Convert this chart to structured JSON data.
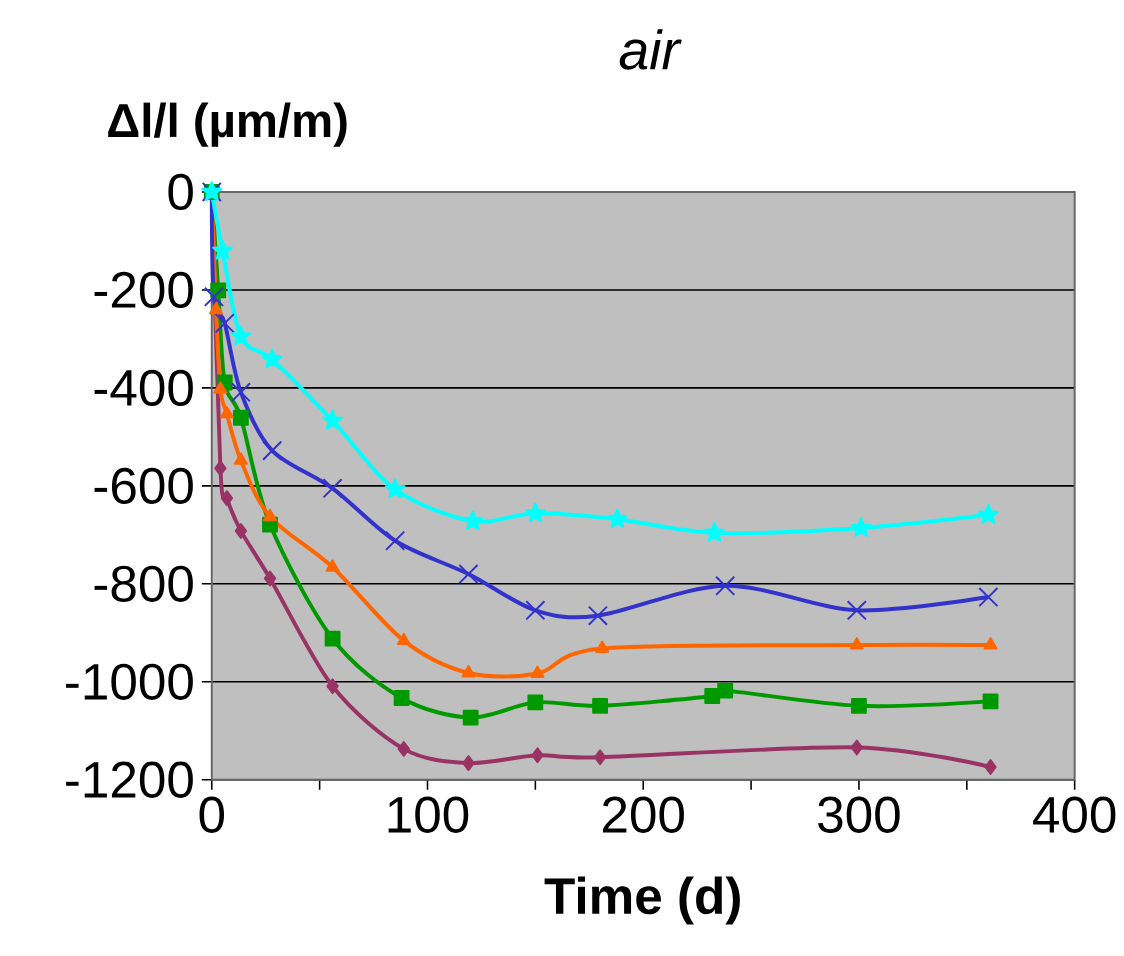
{
  "chart_data": {
    "type": "line",
    "title": "air",
    "xlabel": "Time (d)",
    "ylabel": "Δl/l (µm/m)",
    "xlim": [
      0,
      400
    ],
    "ylim": [
      -1200,
      0
    ],
    "xticks": [
      0,
      {
        "value": 50,
        "label": null
      },
      100,
      {
        "value": 150,
        "label": null
      },
      200,
      {
        "value": 250,
        "label": null
      },
      300,
      {
        "value": 350,
        "label": null
      },
      400
    ],
    "yticks": [
      0,
      -200,
      -400,
      -600,
      -800,
      -1000,
      -1200
    ],
    "grid": "y",
    "series": [
      {
        "color": "#00ffff",
        "marker": "star",
        "x": [
          0,
          5,
          13.5,
          28,
          56,
          85,
          121,
          150,
          188,
          233,
          301,
          360
        ],
        "values": [
          0,
          -120,
          -295,
          -342,
          -467,
          -607,
          -672,
          -656,
          -668,
          -696,
          -686,
          -659
        ]
      },
      {
        "color": "#3333cc",
        "marker": "cross",
        "x": [
          0,
          1,
          6,
          13.5,
          28,
          56,
          85,
          119,
          150,
          179,
          238,
          299,
          360
        ],
        "values": [
          0,
          -214,
          -268,
          -409,
          -528,
          -605,
          -712,
          -780,
          -854,
          -865,
          -804,
          -854,
          -827
        ]
      },
      {
        "color": "#ff6600",
        "marker": "triangle",
        "x": [
          0,
          2,
          4,
          7,
          13.5,
          27,
          56,
          89,
          119,
          151,
          181,
          299,
          361
        ],
        "values": [
          0,
          -241,
          -403,
          -453,
          -548,
          -663,
          -766,
          -916,
          -982,
          -983,
          -932,
          -925,
          -925
        ]
      },
      {
        "color": "#009900",
        "marker": "square",
        "x": [
          0,
          3,
          6,
          13.5,
          27,
          56,
          88,
          120,
          150,
          180,
          232,
          238,
          300,
          361
        ],
        "values": [
          0,
          -201,
          -389,
          -461,
          -679,
          -912,
          -1033,
          -1073,
          -1042,
          -1049,
          -1029,
          -1018,
          -1049,
          -1040
        ]
      },
      {
        "color": "#993366",
        "marker": "diamond",
        "x": [
          0,
          4,
          7,
          13.5,
          27,
          56,
          89,
          119,
          151,
          180,
          299,
          361
        ],
        "values": [
          0,
          -564,
          -625,
          -692,
          -789,
          -1009,
          -1137,
          -1166,
          -1150,
          -1154,
          -1134,
          -1174
        ]
      }
    ]
  }
}
